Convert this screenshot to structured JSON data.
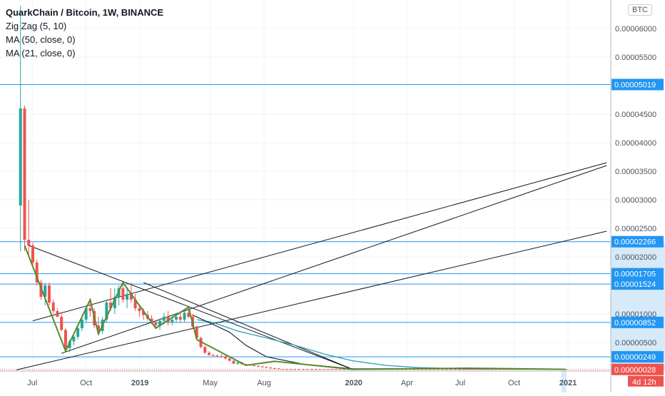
{
  "header": {
    "title": "QuarkChain / Bitcoin, 1W, BINANCE",
    "indicators": [
      "Zig Zag (5, 10)",
      "MA (50, close, 0)",
      "MA (21, close, 0)"
    ],
    "currency": "BTC",
    "countdown": "4d 12h"
  },
  "colors": {
    "up": "#26a69a",
    "down": "#ef5350",
    "hline": "#2196f3",
    "zigzag": "#558b2f",
    "ma50": "#2a9fb1",
    "ma21": "#131722",
    "trend": "#131722",
    "last": "#ef5350",
    "axis_bg": "#ffffff",
    "axis_highlight": "#d6eaf9"
  },
  "chart_data": {
    "type": "candlestick",
    "interval": "1W",
    "ylim": [
      0,
      6.5e-05
    ],
    "y_ticks": [
      {
        "v": 5e-06,
        "label": "0.00000500"
      },
      {
        "v": 1e-05,
        "label": "0.00001000"
      },
      {
        "v": 2e-05,
        "label": "0.00002000"
      },
      {
        "v": 2.5e-05,
        "label": "0.00002500"
      },
      {
        "v": 3e-05,
        "label": "0.00003000"
      },
      {
        "v": 3.5e-05,
        "label": "0.00003500"
      },
      {
        "v": 4e-05,
        "label": "0.00004000"
      },
      {
        "v": 4.5e-05,
        "label": "0.00004500"
      },
      {
        "v": 5.5e-05,
        "label": "0.00005500"
      },
      {
        "v": 6e-05,
        "label": "0.00006000"
      }
    ],
    "x_ticks": [
      {
        "date": "2018-07-01",
        "label": "Jul",
        "bold": false
      },
      {
        "date": "2018-10-01",
        "label": "Oct",
        "bold": false
      },
      {
        "date": "2019-01-01",
        "label": "2019",
        "bold": true
      },
      {
        "date": "2019-05-01",
        "label": "May",
        "bold": false
      },
      {
        "date": "2019-08-01",
        "label": "Aug",
        "bold": false
      },
      {
        "date": "2020-01-01",
        "label": "2020",
        "bold": true
      },
      {
        "date": "2020-04-01",
        "label": "Apr",
        "bold": false
      },
      {
        "date": "2020-07-01",
        "label": "Jul",
        "bold": false
      },
      {
        "date": "2020-10-01",
        "label": "Oct",
        "bold": false
      },
      {
        "date": "2021-01-01",
        "label": "2021",
        "bold": true
      }
    ],
    "horizontal_levels": [
      {
        "value": 5.019e-05,
        "label": "0.00005019"
      },
      {
        "value": 2.266e-05,
        "label": "0.00002266"
      },
      {
        "value": 1.705e-05,
        "label": "0.00001705"
      },
      {
        "value": 1.524e-05,
        "label": "0.00001524"
      },
      {
        "value": 8.52e-06,
        "label": "0.00000852"
      },
      {
        "value": 2.49e-06,
        "label": "0.00000249"
      }
    ],
    "last_price": {
      "value": 2.8e-07,
      "label": "0.00000028"
    },
    "candles": [
      {
        "d": "2018-06-11",
        "o": 2.9e-05,
        "h": 6.4e-05,
        "l": 2.1e-05,
        "c": 4.6e-05
      },
      {
        "d": "2018-06-18",
        "o": 4.6e-05,
        "h": 4.65e-05,
        "l": 2.1e-05,
        "c": 2.3e-05
      },
      {
        "d": "2018-06-25",
        "o": 2.3e-05,
        "h": 3e-05,
        "l": 2.05e-05,
        "c": 2.2e-05
      },
      {
        "d": "2018-07-02",
        "o": 2.2e-05,
        "h": 2.25e-05,
        "l": 1.85e-05,
        "c": 1.9e-05
      },
      {
        "d": "2018-07-09",
        "o": 1.9e-05,
        "h": 1.95e-05,
        "l": 1.5e-05,
        "c": 1.55e-05
      },
      {
        "d": "2018-07-16",
        "o": 1.55e-05,
        "h": 1.6e-05,
        "l": 1.25e-05,
        "c": 1.3e-05
      },
      {
        "d": "2018-07-23",
        "o": 1.3e-05,
        "h": 1.55e-05,
        "l": 1.15e-05,
        "c": 1.5e-05
      },
      {
        "d": "2018-07-30",
        "o": 1.5e-05,
        "h": 1.55e-05,
        "l": 1.15e-05,
        "c": 1.2e-05
      },
      {
        "d": "2018-08-06",
        "o": 1.2e-05,
        "h": 1.25e-05,
        "l": 1e-05,
        "c": 1.05e-05
      },
      {
        "d": "2018-08-13",
        "o": 1.05e-05,
        "h": 1.1e-05,
        "l": 9.5e-06,
        "c": 9.5e-06
      },
      {
        "d": "2018-08-20",
        "o": 9.5e-06,
        "h": 1e-05,
        "l": 7e-06,
        "c": 7.2e-06
      },
      {
        "d": "2018-08-27",
        "o": 7.2e-06,
        "h": 7.5e-06,
        "l": 3.5e-06,
        "c": 4e-06
      },
      {
        "d": "2018-09-03",
        "o": 4e-06,
        "h": 5.5e-06,
        "l": 3.3e-06,
        "c": 5.2e-06
      },
      {
        "d": "2018-09-10",
        "o": 5.2e-06,
        "h": 6.5e-06,
        "l": 4.5e-06,
        "c": 6e-06
      },
      {
        "d": "2018-09-17",
        "o": 6e-06,
        "h": 8e-06,
        "l": 5.5e-06,
        "c": 7.5e-06
      },
      {
        "d": "2018-09-24",
        "o": 7.5e-06,
        "h": 9.8e-06,
        "l": 7e-06,
        "c": 9e-06
      },
      {
        "d": "2018-10-01",
        "o": 9e-06,
        "h": 1.15e-05,
        "l": 8.5e-06,
        "c": 1.1e-05
      },
      {
        "d": "2018-10-08",
        "o": 1.1e-05,
        "h": 1.25e-05,
        "l": 9.5e-06,
        "c": 1.05e-05
      },
      {
        "d": "2018-10-15",
        "o": 1.05e-05,
        "h": 1.1e-05,
        "l": 7.5e-06,
        "c": 8e-06
      },
      {
        "d": "2018-10-22",
        "o": 8e-06,
        "h": 9.5e-06,
        "l": 6.5e-06,
        "c": 7e-06
      },
      {
        "d": "2018-10-29",
        "o": 7e-06,
        "h": 9.5e-06,
        "l": 6.5e-06,
        "c": 9e-06
      },
      {
        "d": "2018-11-05",
        "o": 9e-06,
        "h": 1.25e-05,
        "l": 8.5e-06,
        "c": 1.2e-05
      },
      {
        "d": "2018-11-12",
        "o": 1.2e-05,
        "h": 1.45e-05,
        "l": 1.05e-05,
        "c": 1.1e-05
      },
      {
        "d": "2018-11-19",
        "o": 1.1e-05,
        "h": 1.45e-05,
        "l": 1e-05,
        "c": 1.3e-05
      },
      {
        "d": "2018-11-26",
        "o": 1.3e-05,
        "h": 1.5e-05,
        "l": 1.15e-05,
        "c": 1.45e-05
      },
      {
        "d": "2018-12-03",
        "o": 1.45e-05,
        "h": 1.55e-05,
        "l": 1.2e-05,
        "c": 1.25e-05
      },
      {
        "d": "2018-12-10",
        "o": 1.25e-05,
        "h": 1.45e-05,
        "l": 1.1e-05,
        "c": 1.35e-05
      },
      {
        "d": "2018-12-17",
        "o": 1.35e-05,
        "h": 1.55e-05,
        "l": 1.2e-05,
        "c": 1.25e-05
      },
      {
        "d": "2018-12-24",
        "o": 1.25e-05,
        "h": 1.35e-05,
        "l": 1.05e-05,
        "c": 1.1e-05
      },
      {
        "d": "2018-12-31",
        "o": 1.1e-05,
        "h": 1.15e-05,
        "l": 9.5e-06,
        "c": 1.05e-05
      },
      {
        "d": "2019-01-07",
        "o": 1.05e-05,
        "h": 1.1e-05,
        "l": 9e-06,
        "c": 9.8e-06
      },
      {
        "d": "2019-01-14",
        "o": 9.8e-06,
        "h": 1.05e-05,
        "l": 8.8e-06,
        "c": 9.2e-06
      },
      {
        "d": "2019-01-21",
        "o": 9.2e-06,
        "h": 9.8e-06,
        "l": 8.2e-06,
        "c": 8.5e-06
      },
      {
        "d": "2019-01-28",
        "o": 8.5e-06,
        "h": 9e-06,
        "l": 7.5e-06,
        "c": 8e-06
      },
      {
        "d": "2019-02-04",
        "o": 8e-06,
        "h": 9.2e-06,
        "l": 7.2e-06,
        "c": 8.8e-06
      },
      {
        "d": "2019-02-11",
        "o": 8.8e-06,
        "h": 1.02e-05,
        "l": 8.2e-06,
        "c": 9.5e-06
      },
      {
        "d": "2019-02-18",
        "o": 9.5e-06,
        "h": 1.05e-05,
        "l": 8e-06,
        "c": 8.5e-06
      },
      {
        "d": "2019-02-25",
        "o": 8.5e-06,
        "h": 9.8e-06,
        "l": 8e-06,
        "c": 9e-06
      },
      {
        "d": "2019-03-04",
        "o": 9e-06,
        "h": 1.02e-05,
        "l": 8.5e-06,
        "c": 9.5e-06
      },
      {
        "d": "2019-03-11",
        "o": 9.5e-06,
        "h": 1.05e-05,
        "l": 8.5e-06,
        "c": 9e-06
      },
      {
        "d": "2019-03-18",
        "o": 9e-06,
        "h": 1.08e-05,
        "l": 8.6e-06,
        "c": 1.02e-05
      },
      {
        "d": "2019-03-25",
        "o": 1.02e-05,
        "h": 1.12e-05,
        "l": 9.2e-06,
        "c": 9.5e-06
      },
      {
        "d": "2019-04-01",
        "o": 9.5e-06,
        "h": 1e-05,
        "l": 7.5e-06,
        "c": 7.8e-06
      },
      {
        "d": "2019-04-08",
        "o": 7.8e-06,
        "h": 8e-06,
        "l": 5.5e-06,
        "c": 5.8e-06
      },
      {
        "d": "2019-04-15",
        "o": 5.8e-06,
        "h": 6e-06,
        "l": 4e-06,
        "c": 4.2e-06
      },
      {
        "d": "2019-04-22",
        "o": 4.2e-06,
        "h": 4.5e-06,
        "l": 3e-06,
        "c": 3.2e-06
      },
      {
        "d": "2019-04-29",
        "o": 3.2e-06,
        "h": 3.5e-06,
        "l": 2.7e-06,
        "c": 2.8e-06
      },
      {
        "d": "2019-05-06",
        "o": 2.8e-06,
        "h": 3e-06,
        "l": 2.5e-06,
        "c": 2.7e-06
      },
      {
        "d": "2019-05-13",
        "o": 2.7e-06,
        "h": 2.9e-06,
        "l": 2.4e-06,
        "c": 2.6e-06
      },
      {
        "d": "2019-05-20",
        "o": 2.6e-06,
        "h": 3e-06,
        "l": 2.3e-06,
        "c": 2.5e-06
      },
      {
        "d": "2019-05-27",
        "o": 2.5e-06,
        "h": 2.8e-06,
        "l": 2e-06,
        "c": 2.2e-06
      },
      {
        "d": "2019-06-03",
        "o": 2.2e-06,
        "h": 2.3e-06,
        "l": 1.7e-06,
        "c": 1.8e-06
      },
      {
        "d": "2019-06-10",
        "o": 1.8e-06,
        "h": 1.9e-06,
        "l": 1.2e-06,
        "c": 1.3e-06
      },
      {
        "d": "2019-06-17",
        "o": 1.3e-06,
        "h": 1.7e-06,
        "l": 1.1e-06,
        "c": 1.5e-06
      },
      {
        "d": "2019-06-24",
        "o": 1.5e-06,
        "h": 1.6e-06,
        "l": 1.1e-06,
        "c": 1.2e-06
      },
      {
        "d": "2019-07-01",
        "o": 1.2e-06,
        "h": 1.3e-06,
        "l": 1e-06,
        "c": 1.1e-06
      },
      {
        "d": "2019-07-08",
        "o": 1.1e-06,
        "h": 1.2e-06,
        "l": 9e-07,
        "c": 1e-06
      },
      {
        "d": "2019-07-15",
        "o": 1e-06,
        "h": 1.1e-06,
        "l": 8e-07,
        "c": 9e-07
      },
      {
        "d": "2019-07-22",
        "o": 9e-07,
        "h": 1e-06,
        "l": 7e-07,
        "c": 8e-07
      },
      {
        "d": "2019-07-29",
        "o": 8e-07,
        "h": 9e-07,
        "l": 6e-07,
        "c": 7e-07
      },
      {
        "d": "2019-08-05",
        "o": 7e-07,
        "h": 8e-07,
        "l": 5e-07,
        "c": 6e-07
      },
      {
        "d": "2019-08-12",
        "o": 6e-07,
        "h": 7e-07,
        "l": 4e-07,
        "c": 5e-07
      },
      {
        "d": "2019-08-19",
        "o": 5e-07,
        "h": 6e-07,
        "l": 4e-07,
        "c": 4.5e-07
      },
      {
        "d": "2019-08-26",
        "o": 4.5e-07,
        "h": 5e-07,
        "l": 3e-07,
        "c": 4e-07
      }
    ],
    "flat_tail": {
      "start": "2019-09-02",
      "end": "2020-12-28",
      "value": 3e-07
    },
    "zigzag": [
      {
        "d": "2018-06-18",
        "v": 2.2e-05
      },
      {
        "d": "2018-08-27",
        "v": 3.5e-06
      },
      {
        "d": "2018-10-08",
        "v": 1.25e-05
      },
      {
        "d": "2018-10-22",
        "v": 6.5e-06
      },
      {
        "d": "2018-12-03",
        "v": 1.55e-05
      },
      {
        "d": "2019-01-28",
        "v": 7.5e-06
      },
      {
        "d": "2019-03-25",
        "v": 1.12e-05
      },
      {
        "d": "2019-04-08",
        "v": 5.5e-06
      },
      {
        "d": "2019-07-01",
        "v": 1e-06
      },
      {
        "d": "2019-08-19",
        "v": 1.7e-06
      },
      {
        "d": "2019-12-30",
        "v": 3e-07
      },
      {
        "d": "2020-07-13",
        "v": 5e-07
      },
      {
        "d": "2020-12-28",
        "v": 3e-07
      }
    ],
    "ma50": [
      {
        "d": "2019-04-08",
        "v": 9e-06
      },
      {
        "d": "2019-05-06",
        "v": 8.5e-06
      },
      {
        "d": "2019-06-17",
        "v": 7e-06
      },
      {
        "d": "2019-08-05",
        "v": 5.8e-06
      },
      {
        "d": "2019-09-23",
        "v": 4.5e-06
      },
      {
        "d": "2019-11-11",
        "v": 3e-06
      },
      {
        "d": "2019-12-30",
        "v": 1.8e-06
      },
      {
        "d": "2020-02-24",
        "v": 1e-06
      },
      {
        "d": "2020-04-20",
        "v": 6e-07
      },
      {
        "d": "2020-07-06",
        "v": 4e-07
      },
      {
        "d": "2020-12-28",
        "v": 3e-07
      }
    ],
    "ma21": [
      {
        "d": "2019-04-01",
        "v": 9.8e-06
      },
      {
        "d": "2019-04-29",
        "v": 8.5e-06
      },
      {
        "d": "2019-06-03",
        "v": 6.8e-06
      },
      {
        "d": "2019-07-01",
        "v": 4.5e-06
      },
      {
        "d": "2019-08-05",
        "v": 2.5e-06
      },
      {
        "d": "2019-10-07",
        "v": 1.2e-06
      },
      {
        "d": "2019-12-30",
        "v": 4e-07
      },
      {
        "d": "2020-07-06",
        "v": 4e-07
      },
      {
        "d": "2020-12-28",
        "v": 3e-07
      }
    ],
    "trendlines": [
      {
        "p1": {
          "d": "2018-06-25",
          "v": 2.2e-05
        },
        "p2": {
          "d": "2019-12-30",
          "v": 3e-07
        }
      },
      {
        "p1": {
          "d": "2019-01-07",
          "v": 1.55e-05
        },
        "p2": {
          "d": "2019-12-30",
          "v": 3e-07
        }
      },
      {
        "p1": {
          "d": "2018-07-02",
          "v": 8.8e-06
        },
        "p2": {
          "d": "2021-03-08",
          "v": 3.65e-05
        }
      },
      {
        "p1": {
          "d": "2018-08-20",
          "v": 3.1e-06
        },
        "p2": {
          "d": "2021-03-08",
          "v": 3.6e-05
        }
      },
      {
        "p1": {
          "d": "2018-06-04",
          "v": 2e-07
        },
        "p2": {
          "d": "2021-03-08",
          "v": 2.45e-05
        }
      }
    ]
  }
}
